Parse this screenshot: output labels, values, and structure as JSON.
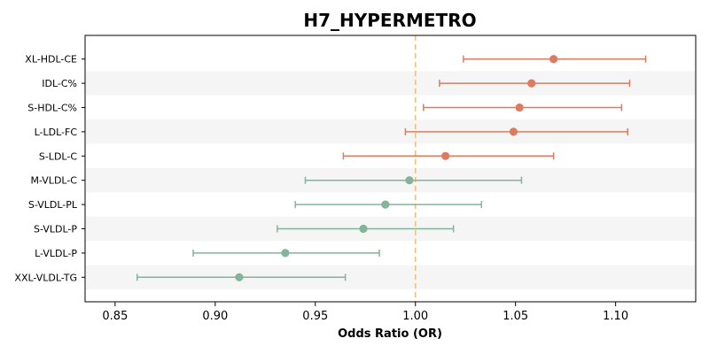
{
  "chart_data": {
    "type": "forest",
    "title": "H7_HYPERMETRO",
    "xlabel": "Odds Ratio (OR)",
    "ylabel": "",
    "xlim": [
      0.835,
      1.14
    ],
    "xticks": [
      "0.85",
      "0.90",
      "0.95",
      "1.00",
      "1.05",
      "1.10"
    ],
    "reference_line": 1.0,
    "reference_line_style": "dashed",
    "alternating_row_shading": true,
    "colors": {
      "increased_risk": "#de7a5f",
      "decreased_risk": "#82b49a",
      "reference_line": "#f2c078",
      "band": "#f5f5f5"
    },
    "rows": [
      {
        "label": "XL-HDL-CE",
        "or": 1.069,
        "ci_low": 1.024,
        "ci_high": 1.115
      },
      {
        "label": "IDL-C%",
        "or": 1.058,
        "ci_low": 1.012,
        "ci_high": 1.107
      },
      {
        "label": "S-HDL-C%",
        "or": 1.052,
        "ci_low": 1.004,
        "ci_high": 1.103
      },
      {
        "label": "L-LDL-FC",
        "or": 1.049,
        "ci_low": 0.995,
        "ci_high": 1.106
      },
      {
        "label": "S-LDL-C",
        "or": 1.015,
        "ci_low": 0.964,
        "ci_high": 1.069
      },
      {
        "label": "M-VLDL-C",
        "or": 0.997,
        "ci_low": 0.945,
        "ci_high": 1.053
      },
      {
        "label": "S-VLDL-PL",
        "or": 0.985,
        "ci_low": 0.94,
        "ci_high": 1.033
      },
      {
        "label": "S-VLDL-P",
        "or": 0.974,
        "ci_low": 0.931,
        "ci_high": 1.019
      },
      {
        "label": "L-VLDL-P",
        "or": 0.935,
        "ci_low": 0.889,
        "ci_high": 0.982
      },
      {
        "label": "XXL-VLDL-TG",
        "or": 0.912,
        "ci_low": 0.861,
        "ci_high": 0.965
      }
    ]
  }
}
